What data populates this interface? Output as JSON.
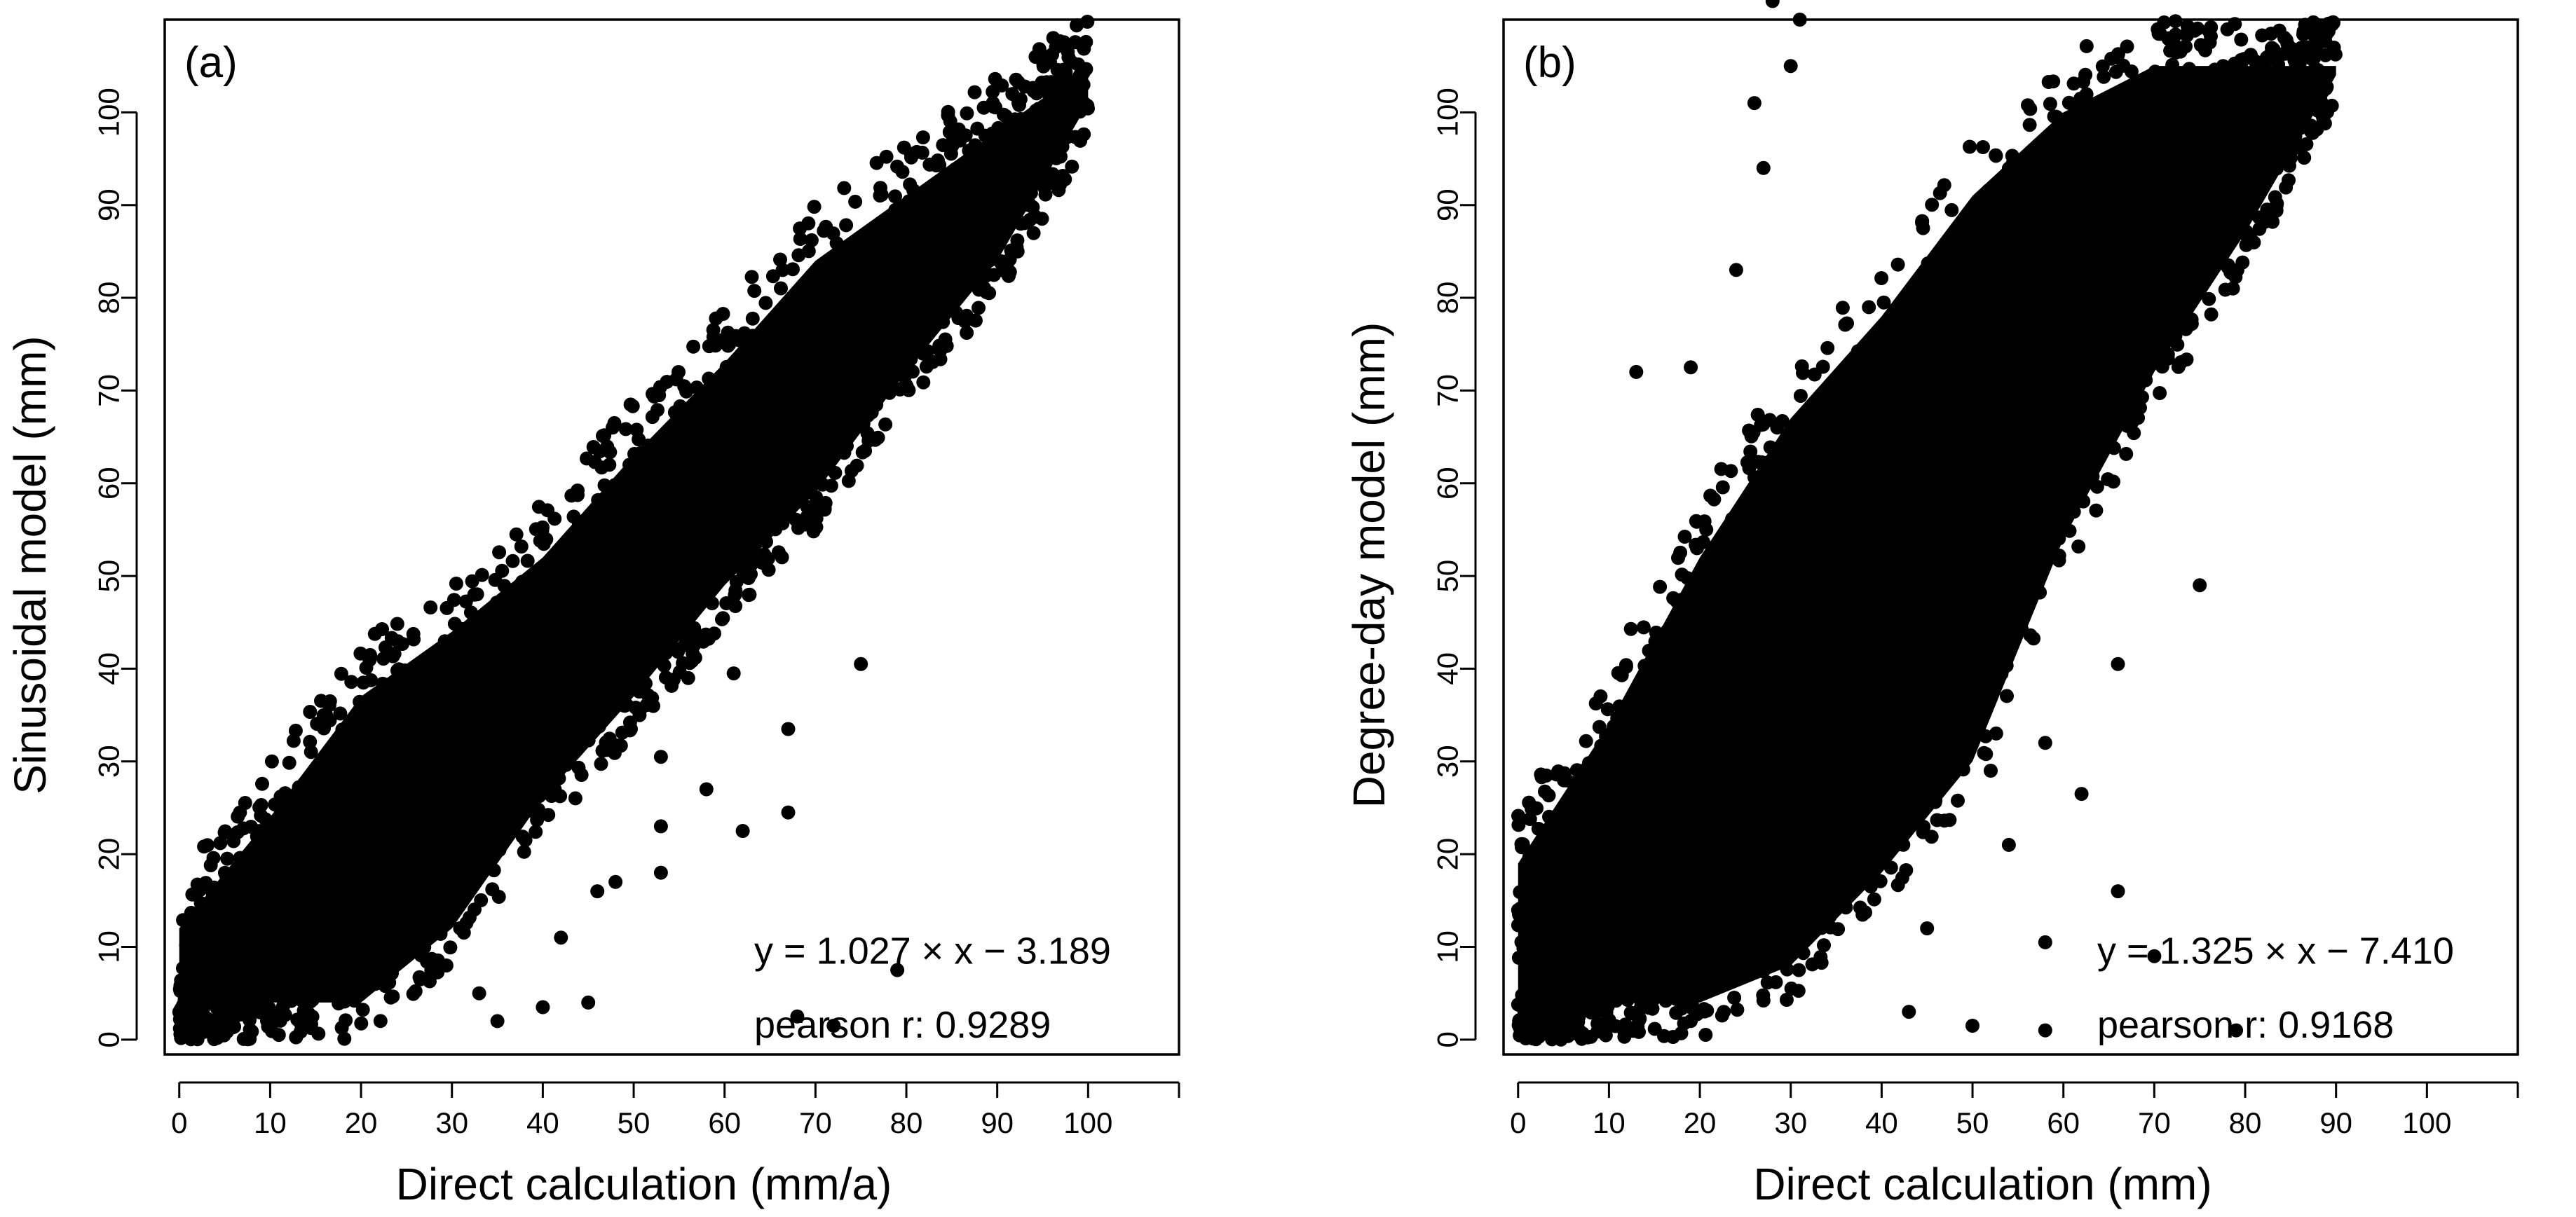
{
  "figure": "Two-panel scatter comparison of modelled values against direct calculation",
  "chart_data": [
    {
      "type": "scatter",
      "panel_label": "(a)",
      "xlabel": "Direct calculation (mm/a)",
      "ylabel": "Sinusoidal model (mm)",
      "xlim": [
        0,
        110
      ],
      "ylim": [
        0,
        110
      ],
      "xticks": [
        0,
        10,
        20,
        30,
        40,
        50,
        60,
        70,
        80,
        90,
        100
      ],
      "yticks": [
        0,
        10,
        20,
        30,
        40,
        50,
        60,
        70,
        80,
        90,
        100
      ],
      "fit": {
        "slope": 1.027,
        "intercept": -3.189
      },
      "fit_label": "y = 1.027 × x − 3.189",
      "pearson_label": "pearson r: 0.9289",
      "density_band": {
        "centerline": [
          [
            0,
            3
          ],
          [
            10,
            9
          ],
          [
            20,
            17
          ],
          [
            30,
            27
          ],
          [
            40,
            37
          ],
          [
            50,
            48
          ],
          [
            60,
            58
          ],
          [
            70,
            68
          ],
          [
            80,
            79
          ],
          [
            90,
            91
          ],
          [
            100,
            105
          ]
        ],
        "upper": [
          [
            0,
            18
          ],
          [
            10,
            30
          ],
          [
            20,
            43
          ],
          [
            30,
            50
          ],
          [
            40,
            58
          ],
          [
            50,
            69
          ],
          [
            60,
            79
          ],
          [
            70,
            90
          ],
          [
            80,
            97
          ],
          [
            90,
            104
          ],
          [
            100,
            111
          ]
        ],
        "lower": [
          [
            0,
            0
          ],
          [
            10,
            0
          ],
          [
            20,
            0
          ],
          [
            30,
            8
          ],
          [
            40,
            22
          ],
          [
            50,
            33
          ],
          [
            60,
            45
          ],
          [
            70,
            55
          ],
          [
            80,
            68
          ],
          [
            90,
            80
          ],
          [
            100,
            97
          ]
        ]
      },
      "outliers": [
        [
          75,
          40.5
        ],
        [
          67,
          33.5
        ],
        [
          62,
          22.5
        ],
        [
          61,
          39.5
        ],
        [
          58,
          27
        ],
        [
          67,
          24.5
        ],
        [
          53,
          23
        ],
        [
          53,
          30.5
        ],
        [
          53,
          18
        ],
        [
          48,
          17
        ],
        [
          45,
          4
        ],
        [
          40,
          3.5
        ],
        [
          35,
          2
        ],
        [
          33,
          5
        ],
        [
          68,
          2.5
        ],
        [
          72,
          1.5
        ],
        [
          79,
          7.5
        ],
        [
          42,
          11
        ],
        [
          46,
          16
        ],
        [
          49,
          36
        ],
        [
          56,
          39
        ]
      ]
    },
    {
      "type": "scatter",
      "panel_label": "(b)",
      "xlabel": "Direct calculation (mm)",
      "ylabel": "Degree-day model (mm)",
      "xlim": [
        0,
        110
      ],
      "ylim": [
        0,
        110
      ],
      "xticks": [
        0,
        10,
        20,
        30,
        40,
        50,
        60,
        70,
        80,
        90,
        100
      ],
      "yticks": [
        0,
        10,
        20,
        30,
        40,
        50,
        60,
        70,
        80,
        90,
        100
      ],
      "fit": {
        "slope": 1.325,
        "intercept": -7.41
      },
      "fit_label": "y = 1.325 × x − 7.410",
      "pearson_label": "pearson r: 0.9168",
      "density_band": {
        "centerline": [
          [
            0,
            2
          ],
          [
            10,
            8
          ],
          [
            20,
            18
          ],
          [
            30,
            31
          ],
          [
            40,
            45
          ],
          [
            50,
            58
          ],
          [
            60,
            72
          ],
          [
            70,
            85
          ],
          [
            80,
            98
          ],
          [
            90,
            110
          ]
        ],
        "upper": [
          [
            0,
            25
          ],
          [
            10,
            40
          ],
          [
            20,
            58
          ],
          [
            30,
            73
          ],
          [
            40,
            84
          ],
          [
            50,
            97
          ],
          [
            60,
            106
          ],
          [
            70,
            111
          ],
          [
            80,
            111
          ],
          [
            90,
            111
          ]
        ],
        "lower": [
          [
            0,
            0
          ],
          [
            10,
            0
          ],
          [
            20,
            0
          ],
          [
            30,
            4
          ],
          [
            40,
            14
          ],
          [
            50,
            26
          ],
          [
            60,
            50
          ],
          [
            70,
            68
          ],
          [
            80,
            83
          ],
          [
            90,
            100
          ]
        ]
      },
      "outliers": [
        [
          28,
          112
        ],
        [
          31,
          110
        ],
        [
          30,
          105
        ],
        [
          26,
          101
        ],
        [
          27,
          94
        ],
        [
          24,
          83
        ],
        [
          19,
          72.5
        ],
        [
          13,
          72
        ],
        [
          75,
          49
        ],
        [
          66,
          40.5
        ],
        [
          58,
          32
        ],
        [
          62,
          26.5
        ],
        [
          66,
          16
        ],
        [
          58,
          10.5
        ],
        [
          70,
          9
        ],
        [
          79,
          1
        ],
        [
          58,
          1
        ],
        [
          50,
          1.5
        ],
        [
          43,
          3
        ],
        [
          45,
          12
        ],
        [
          54,
          21
        ],
        [
          52,
          29
        ],
        [
          49,
          30
        ],
        [
          47,
          35
        ]
      ]
    }
  ]
}
